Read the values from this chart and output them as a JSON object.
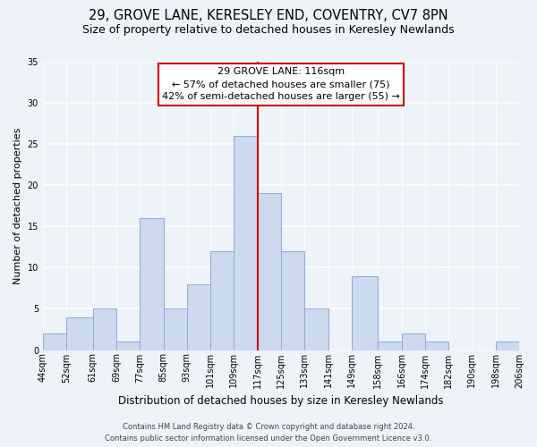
{
  "title": "29, GROVE LANE, KERESLEY END, COVENTRY, CV7 8PN",
  "subtitle": "Size of property relative to detached houses in Keresley Newlands",
  "xlabel": "Distribution of detached houses by size in Keresley Newlands",
  "ylabel": "Number of detached properties",
  "bar_color": "#ccd9ee",
  "bar_edge_color": "#8aadd4",
  "vline_x": 117,
  "vline_color": "#cc0000",
  "annotation_title": "29 GROVE LANE: 116sqm",
  "annotation_line1": "← 57% of detached houses are smaller (75)",
  "annotation_line2": "42% of semi-detached houses are larger (55) →",
  "annotation_box_color": "#ffffff",
  "annotation_box_edge": "#cc0000",
  "bins": [
    44,
    52,
    61,
    69,
    77,
    85,
    93,
    101,
    109,
    117,
    125,
    133,
    141,
    149,
    158,
    166,
    174,
    182,
    190,
    198,
    206
  ],
  "counts": [
    2,
    4,
    5,
    1,
    16,
    5,
    8,
    12,
    26,
    19,
    12,
    5,
    0,
    9,
    1,
    2,
    1,
    0,
    0,
    1
  ],
  "ylim": [
    0,
    35
  ],
  "yticks": [
    0,
    5,
    10,
    15,
    20,
    25,
    30,
    35
  ],
  "footnote1": "Contains HM Land Registry data © Crown copyright and database right 2024.",
  "footnote2": "Contains public sector information licensed under the Open Government Licence v3.0.",
  "bg_color": "#eef2f9",
  "grid_color": "#ffffff",
  "title_fontsize": 10.5,
  "subtitle_fontsize": 9,
  "ylabel_fontsize": 8,
  "xlabel_fontsize": 8.5,
  "tick_fontsize": 7,
  "annot_fontsize": 8,
  "footnote_fontsize": 6
}
